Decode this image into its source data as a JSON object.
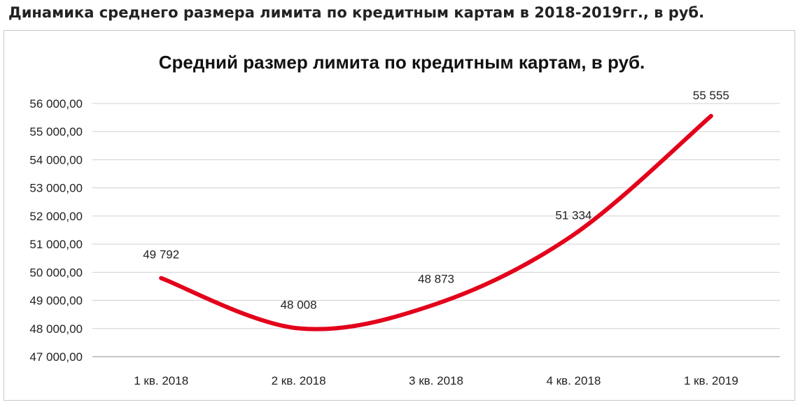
{
  "page": {
    "heading": "Динамика среднего размера лимита по кредитным картам в 2018-2019гг., в руб."
  },
  "chart_data": {
    "type": "line",
    "title": "Средний размер лимита по кредитным картам, в руб.",
    "xlabel": "",
    "ylabel": "",
    "categories": [
      "1 кв. 2018",
      "2 кв. 2018",
      "3 кв. 2018",
      "4 кв. 2018",
      "1 кв. 2019"
    ],
    "series": [
      {
        "values": [
          49792,
          48008,
          48873,
          51334,
          55555
        ],
        "color": "#e3001b"
      }
    ],
    "data_labels": [
      "49 792",
      "48 008",
      "48 873",
      "51 334",
      "55 555"
    ],
    "y_ticks": [
      {
        "value": 47000,
        "label": "47 000,00"
      },
      {
        "value": 48000,
        "label": "48 000,00"
      },
      {
        "value": 49000,
        "label": "49 000,00"
      },
      {
        "value": 50000,
        "label": "50 000,00"
      },
      {
        "value": 51000,
        "label": "51 000,00"
      },
      {
        "value": 52000,
        "label": "52 000,00"
      },
      {
        "value": 53000,
        "label": "53 000,00"
      },
      {
        "value": 54000,
        "label": "54 000,00"
      },
      {
        "value": 55000,
        "label": "55 000,00"
      },
      {
        "value": 56000,
        "label": "56 000,00"
      }
    ],
    "ylim": [
      47000,
      56000
    ],
    "smooth": true,
    "grid": true,
    "legend": "none"
  }
}
